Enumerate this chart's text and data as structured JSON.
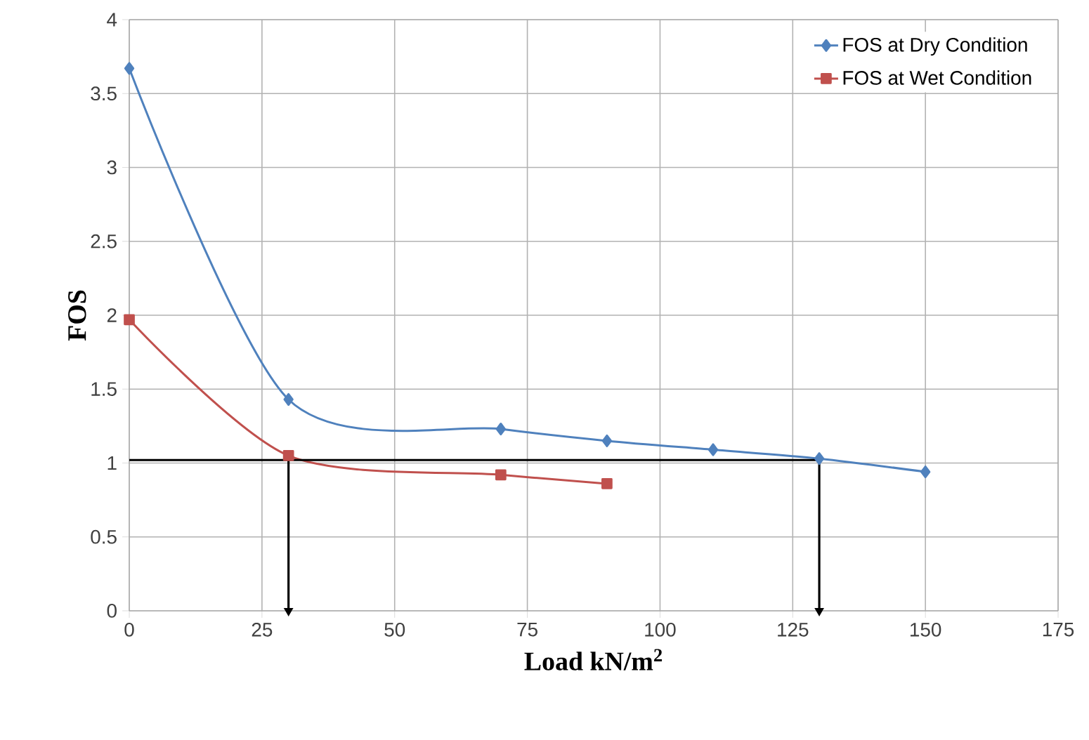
{
  "chart_data": {
    "type": "line",
    "xlabel": "Load kN/m$^{2}$",
    "ylabel": "FOS",
    "xlim": [
      0,
      175
    ],
    "xticks": [
      0,
      25,
      50,
      75,
      100,
      125,
      150,
      175
    ],
    "ylim": [
      0,
      4
    ],
    "yticks": [
      0,
      0.5,
      1,
      1.5,
      2,
      2.5,
      3,
      3.5,
      4
    ],
    "grid": true,
    "legend": "top right",
    "series": [
      {
        "name": "FOS at Dry Condition",
        "color": "#4f81bd",
        "marker": "diamond",
        "x": [
          0,
          30,
          70,
          90,
          110,
          130,
          150
        ],
        "values": [
          3.67,
          1.43,
          1.23,
          1.15,
          1.09,
          1.03,
          0.94
        ]
      },
      {
        "name": "FOS at Wet Condition",
        "color": "#c0504d",
        "marker": "square",
        "x": [
          0,
          30,
          70,
          90
        ],
        "values": [
          1.97,
          1.05,
          0.92,
          0.86
        ]
      },
      {
        "color": "#000000",
        "marker": "none",
        "x": [
          0,
          130
        ],
        "values": [
          1.02,
          1.02
        ]
      },
      {
        "color": "#000000",
        "marker": "triangle",
        "x": [
          30,
          30
        ],
        "values": [
          1.02,
          0
        ]
      },
      {
        "color": "#000000",
        "marker": "triangle",
        "x": [
          130,
          130
        ],
        "values": [
          1.02,
          0
        ]
      }
    ]
  }
}
